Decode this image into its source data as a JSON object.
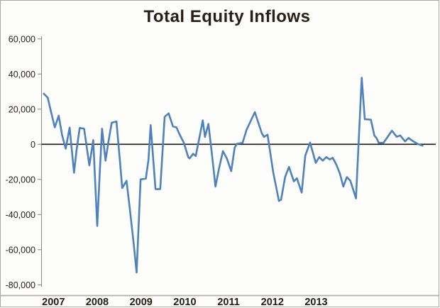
{
  "chart_data": {
    "type": "line",
    "title": "Total Equity Inflows",
    "grid": false,
    "legend": "none",
    "ylim": [
      -80000,
      60000
    ],
    "xlabel": "",
    "ylabel": "",
    "zero_baseline": true,
    "colors": {
      "line": "#4f81bd",
      "axis": "#8f8c86",
      "zero_line": "#1c1a17",
      "text": "#262019",
      "bottom_rule": "#b3afa9",
      "background": "#fdfdfb"
    },
    "yticks": [
      {
        "value": 60000,
        "label": "60,000"
      },
      {
        "value": 40000,
        "label": "40,000"
      },
      {
        "value": 20000,
        "label": "20,000"
      },
      {
        "value": 0,
        "label": "0"
      },
      {
        "value": -20000,
        "label": "-20,000"
      },
      {
        "value": -40000,
        "label": "-40,000"
      },
      {
        "value": -60000,
        "label": "-60,000"
      },
      {
        "value": -80000,
        "label": "-80,000"
      }
    ],
    "x_ticks": [
      {
        "year": 2007,
        "label": "2007"
      },
      {
        "year": 2008,
        "label": "2008"
      },
      {
        "year": 2009,
        "label": "2009"
      },
      {
        "year": 2010,
        "label": "2010"
      },
      {
        "year": 2011,
        "label": "2011"
      },
      {
        "year": 2012,
        "label": "2012"
      },
      {
        "year": 2013,
        "label": "2013"
      }
    ],
    "series": [
      {
        "name": "Total Equity Inflows",
        "color": "#4f81bd",
        "points": [
          [
            2006.78,
            28800
          ],
          [
            2006.87,
            26500
          ],
          [
            2006.95,
            18000
          ],
          [
            2007.03,
            9600
          ],
          [
            2007.12,
            16300
          ],
          [
            2007.2,
            5000
          ],
          [
            2007.28,
            -2500
          ],
          [
            2007.37,
            9500
          ],
          [
            2007.47,
            -16200
          ],
          [
            2007.53,
            -3000
          ],
          [
            2007.6,
            9300
          ],
          [
            2007.7,
            8900
          ],
          [
            2007.82,
            -12000
          ],
          [
            2007.91,
            2400
          ],
          [
            2008.0,
            -46500
          ],
          [
            2008.06,
            -15000
          ],
          [
            2008.11,
            8900
          ],
          [
            2008.19,
            -9300
          ],
          [
            2008.26,
            2000
          ],
          [
            2008.33,
            12300
          ],
          [
            2008.44,
            13000
          ],
          [
            2008.52,
            -10000
          ],
          [
            2008.57,
            -24900
          ],
          [
            2008.67,
            -20800
          ],
          [
            2008.75,
            -38000
          ],
          [
            2008.83,
            -56000
          ],
          [
            2008.9,
            -73000
          ],
          [
            2008.99,
            -20000
          ],
          [
            2009.11,
            -19500
          ],
          [
            2009.17,
            -9000
          ],
          [
            2009.22,
            10900
          ],
          [
            2009.33,
            -25500
          ],
          [
            2009.44,
            -25500
          ],
          [
            2009.54,
            15600
          ],
          [
            2009.63,
            17600
          ],
          [
            2009.73,
            10200
          ],
          [
            2009.81,
            9600
          ],
          [
            2009.87,
            6200
          ],
          [
            2009.98,
            700
          ],
          [
            2010.08,
            -7400
          ],
          [
            2010.11,
            -8100
          ],
          [
            2010.19,
            -5400
          ],
          [
            2010.25,
            -6700
          ],
          [
            2010.32,
            2000
          ],
          [
            2010.41,
            13600
          ],
          [
            2010.46,
            4200
          ],
          [
            2010.54,
            11600
          ],
          [
            2010.63,
            -8000
          ],
          [
            2010.7,
            -24100
          ],
          [
            2010.78,
            -14000
          ],
          [
            2010.87,
            -3900
          ],
          [
            2010.96,
            -8000
          ],
          [
            2011.06,
            -15300
          ],
          [
            2011.14,
            -1900
          ],
          [
            2011.19,
            300
          ],
          [
            2011.32,
            800
          ],
          [
            2011.41,
            8200
          ],
          [
            2011.6,
            18300
          ],
          [
            2011.68,
            12200
          ],
          [
            2011.76,
            6200
          ],
          [
            2011.81,
            4200
          ],
          [
            2011.89,
            5500
          ],
          [
            2012.02,
            -16000
          ],
          [
            2012.15,
            -32300
          ],
          [
            2012.2,
            -31500
          ],
          [
            2012.29,
            -18700
          ],
          [
            2012.38,
            -12900
          ],
          [
            2012.49,
            -21100
          ],
          [
            2012.56,
            -19400
          ],
          [
            2012.67,
            -27500
          ],
          [
            2012.75,
            -6600
          ],
          [
            2012.86,
            1000
          ],
          [
            2012.99,
            -10600
          ],
          [
            2013.07,
            -7300
          ],
          [
            2013.15,
            -9300
          ],
          [
            2013.23,
            -7300
          ],
          [
            2013.31,
            -8600
          ],
          [
            2013.38,
            -7700
          ],
          [
            2013.46,
            -11600
          ],
          [
            2013.54,
            -16500
          ],
          [
            2013.62,
            -24100
          ],
          [
            2013.7,
            -18700
          ],
          [
            2013.78,
            -20700
          ],
          [
            2013.91,
            -30800
          ],
          [
            2014.04,
            37900
          ],
          [
            2014.11,
            14300
          ],
          [
            2014.25,
            14000
          ],
          [
            2014.33,
            4900
          ],
          [
            2014.38,
            3500
          ],
          [
            2014.43,
            800
          ],
          [
            2014.54,
            900
          ],
          [
            2014.73,
            7700
          ],
          [
            2014.84,
            4300
          ],
          [
            2014.92,
            5000
          ],
          [
            2015.03,
            1600
          ],
          [
            2015.11,
            3600
          ],
          [
            2015.22,
            1600
          ],
          [
            2015.32,
            200
          ],
          [
            2015.43,
            -800
          ]
        ]
      }
    ]
  }
}
